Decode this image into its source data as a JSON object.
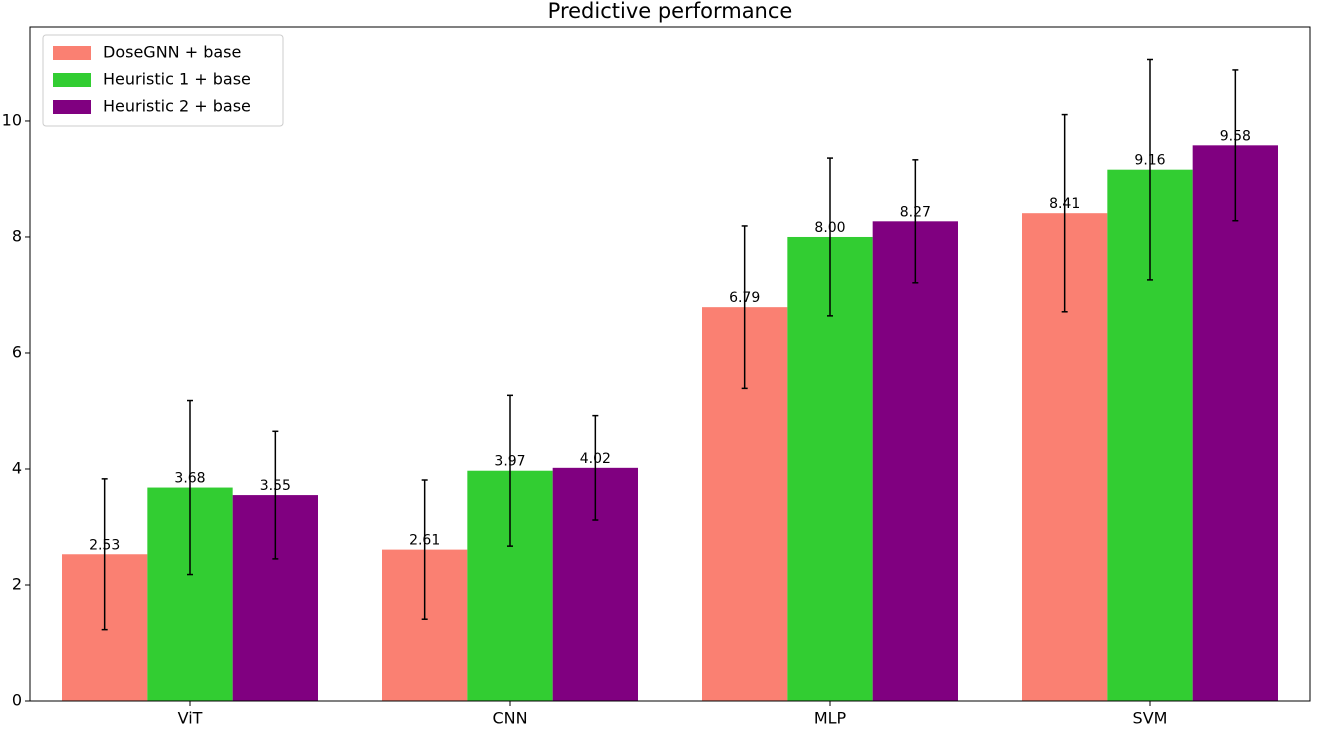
{
  "chart_data": {
    "type": "bar",
    "title": "Predictive performance",
    "categories": [
      "ViT",
      "CNN",
      "MLP",
      "SVM"
    ],
    "series": [
      {
        "name": "DoseGNN + base",
        "color": "#fa8072",
        "values": [
          2.53,
          2.61,
          6.79,
          8.41
        ],
        "value_labels": [
          "2.53",
          "2.61",
          "6.79",
          "8.41"
        ],
        "errors": [
          1.3,
          1.2,
          1.4,
          1.7
        ]
      },
      {
        "name": "Heuristic 1 + base",
        "color": "#32cd32",
        "values": [
          3.68,
          3.97,
          8.0,
          9.16
        ],
        "value_labels": [
          "3.68",
          "3.97",
          "8.00",
          "9.16"
        ],
        "errors": [
          1.5,
          1.3,
          1.36,
          1.9
        ]
      },
      {
        "name": "Heuristic 2 + base",
        "color": "#800080",
        "values": [
          3.55,
          4.02,
          8.27,
          9.58
        ],
        "value_labels": [
          "3.55",
          "4.02",
          "8.27",
          "9.58"
        ],
        "errors": [
          1.1,
          0.9,
          1.06,
          1.3
        ]
      }
    ],
    "ylim": [
      0,
      11.62
    ],
    "yticks": [
      0,
      2,
      4,
      6,
      8,
      10
    ],
    "legend": "upper left"
  }
}
